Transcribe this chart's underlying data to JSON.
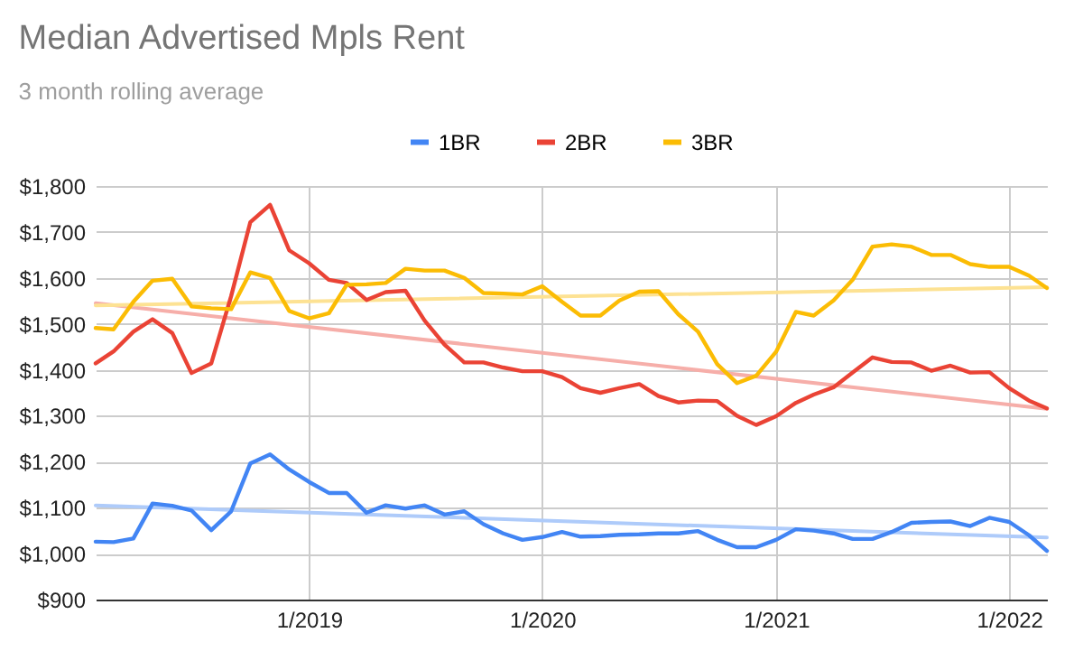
{
  "chart_data": {
    "type": "line",
    "title": "Median Advertised Mpls Rent",
    "subtitle": "3 month rolling average",
    "x": [
      "2018-02",
      "2018-03",
      "2018-04",
      "2018-05",
      "2018-06",
      "2018-07",
      "2018-08",
      "2018-09",
      "2018-10",
      "2018-11",
      "2018-12",
      "2019-01",
      "2019-02",
      "2019-03",
      "2019-04",
      "2019-05",
      "2019-06",
      "2019-07",
      "2019-08",
      "2019-09",
      "2019-10",
      "2019-11",
      "2019-12",
      "2020-01",
      "2020-02",
      "2020-03",
      "2020-04",
      "2020-05",
      "2020-06",
      "2020-07",
      "2020-08",
      "2020-09",
      "2020-10",
      "2020-11",
      "2020-12",
      "2021-01",
      "2021-02",
      "2021-03",
      "2021-04",
      "2021-05",
      "2021-06",
      "2021-07",
      "2021-08",
      "2021-09",
      "2021-10",
      "2021-11",
      "2021-12",
      "2022-01",
      "2022-02",
      "2022-03"
    ],
    "series": [
      {
        "name": "1BR",
        "color": "#4285f4",
        "values": [
          1026,
          1025,
          1033,
          1109,
          1104,
          1094,
          1051,
          1092,
          1196,
          1216,
          1183,
          1156,
          1132,
          1132,
          1089,
          1105,
          1098,
          1105,
          1085,
          1092,
          1064,
          1044,
          1030,
          1036,
          1047,
          1037,
          1038,
          1041,
          1042,
          1044,
          1044,
          1049,
          1030,
          1014,
          1014,
          1030,
          1053,
          1050,
          1044,
          1032,
          1032,
          1047,
          1067,
          1069,
          1070,
          1060,
          1078,
          1069,
          1040,
          1006
        ]
      },
      {
        "name": "2BR",
        "color": "#ea4335",
        "values": [
          1414,
          1440,
          1483,
          1510,
          1480,
          1393,
          1414,
          1560,
          1721,
          1759,
          1660,
          1632,
          1596,
          1589,
          1552,
          1569,
          1572,
          1507,
          1455,
          1416,
          1416,
          1405,
          1397,
          1397,
          1384,
          1360,
          1350,
          1360,
          1369,
          1343,
          1329,
          1333,
          1332,
          1300,
          1280,
          1299,
          1328,
          1346,
          1362,
          1394,
          1427,
          1417,
          1416,
          1398,
          1409,
          1394,
          1395,
          1360,
          1333,
          1316
        ]
      },
      {
        "name": "3BR",
        "color": "#fbbc04",
        "values": [
          1491,
          1488,
          1548,
          1594,
          1598,
          1538,
          1534,
          1532,
          1612,
          1600,
          1528,
          1512,
          1523,
          1585,
          1586,
          1589,
          1620,
          1616,
          1616,
          1600,
          1567,
          1566,
          1564,
          1582,
          1548,
          1518,
          1518,
          1551,
          1570,
          1571,
          1521,
          1483,
          1412,
          1371,
          1387,
          1439,
          1526,
          1518,
          1551,
          1596,
          1668,
          1673,
          1668,
          1650,
          1650,
          1630,
          1624,
          1624,
          1605,
          1578
        ]
      },
      {
        "type": "line",
        "color": "#aecbfa",
        "x": [
          "2018-02",
          "2022-03"
        ],
        "values": [
          1105,
          1035
        ]
      },
      {
        "type": "line",
        "color": "#f6aea9",
        "x": [
          "2018-02",
          "2022-03"
        ],
        "values": [
          1545,
          1315
        ]
      },
      {
        "type": "line",
        "color": "#fde293",
        "x": [
          "2018-02",
          "2022-03"
        ],
        "values": [
          1540,
          1580
        ]
      }
    ],
    "xlim": [
      "2018-02",
      "2022-03"
    ],
    "xticks": [
      {
        "value": "2019-01",
        "label": "1/2019"
      },
      {
        "value": "2020-01",
        "label": "1/2020"
      },
      {
        "value": "2021-01",
        "label": "1/2021"
      },
      {
        "value": "2022-01",
        "label": "1/2022"
      }
    ],
    "ylim": [
      900,
      1800
    ],
    "yticks": [
      {
        "value": 900,
        "label": "$900"
      },
      {
        "value": 1000,
        "label": "$1,000"
      },
      {
        "value": 1100,
        "label": "$1,100"
      },
      {
        "value": 1200,
        "label": "$1,200"
      },
      {
        "value": 1300,
        "label": "$1,300"
      },
      {
        "value": 1400,
        "label": "$1,400"
      },
      {
        "value": 1500,
        "label": "$1,500"
      },
      {
        "value": 1600,
        "label": "$1,600"
      },
      {
        "value": 1700,
        "label": "$1,700"
      },
      {
        "value": 1800,
        "label": "$1,800"
      }
    ],
    "grid": true,
    "legend": "top",
    "marker": "none",
    "line_style": "solid"
  }
}
